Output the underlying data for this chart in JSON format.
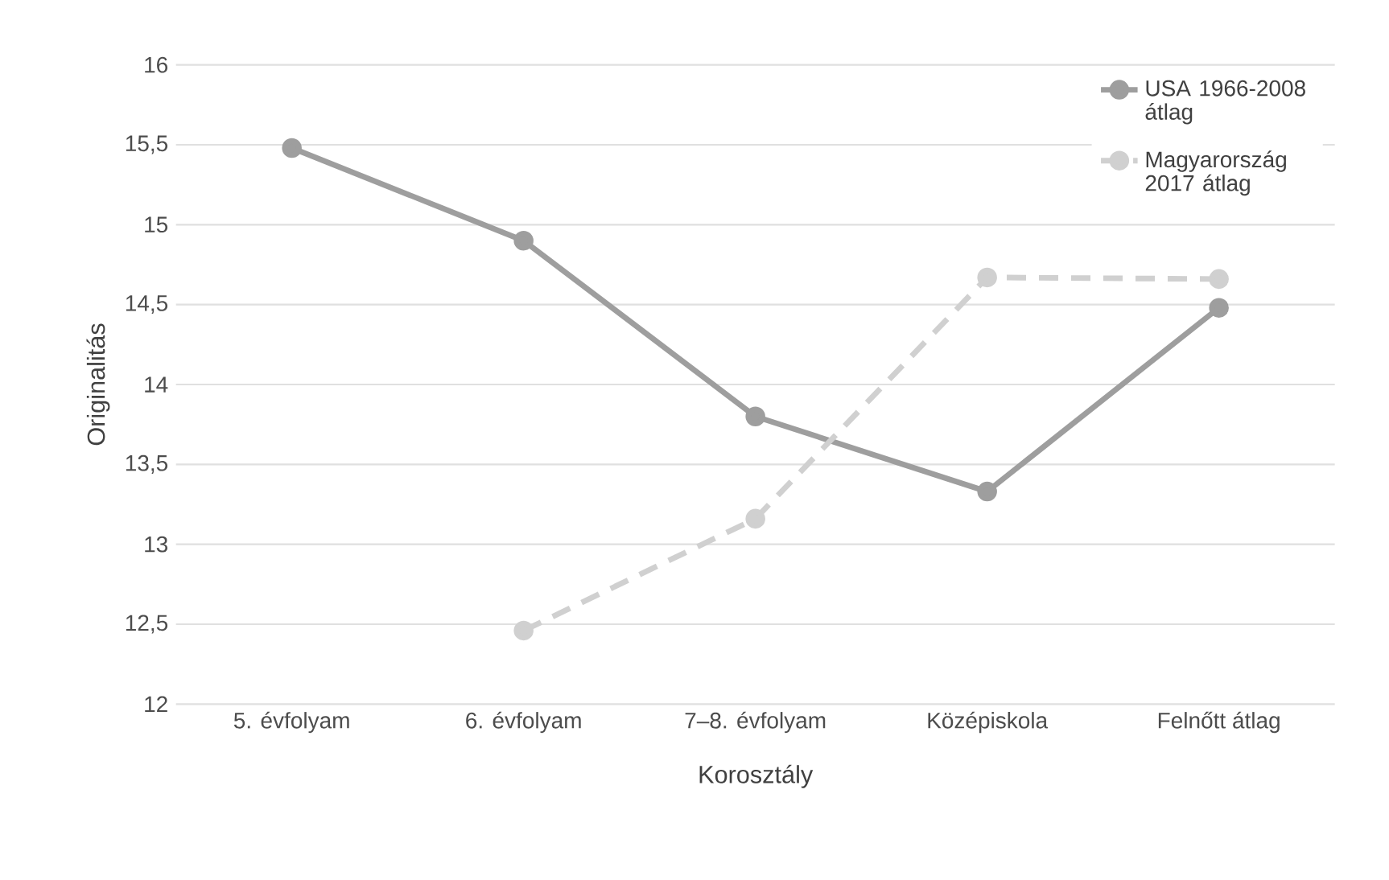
{
  "chart_data": {
    "type": "line",
    "xlabel": "Korosztály",
    "ylabel": "Originalitás",
    "categories": [
      "5. évfolyam",
      "6. évfolyam",
      "7–8. évfolyam",
      "Középiskola",
      "Felnőtt átlag"
    ],
    "series": [
      {
        "name": "USA 1966-2008 átlag",
        "color": "#9e9e9e",
        "line_style": "solid",
        "values": [
          15.48,
          14.9,
          13.8,
          13.33,
          14.48
        ]
      },
      {
        "name": "Magyarország 2017 átlag",
        "color": "#d0d0d0",
        "line_style": "dashed",
        "values": [
          null,
          12.46,
          13.16,
          14.67,
          14.66
        ]
      }
    ],
    "ylim": [
      12,
      16
    ],
    "yticks": [
      12,
      {
        "value": 12.5,
        "label": "12,5"
      },
      13,
      {
        "value": 13.5,
        "label": "13,5"
      },
      14,
      {
        "value": 14.5,
        "label": "14,5"
      },
      15,
      {
        "value": 15.5,
        "label": "15,5"
      },
      16
    ],
    "grid": "y",
    "legend": "top right",
    "marker": "circle"
  }
}
